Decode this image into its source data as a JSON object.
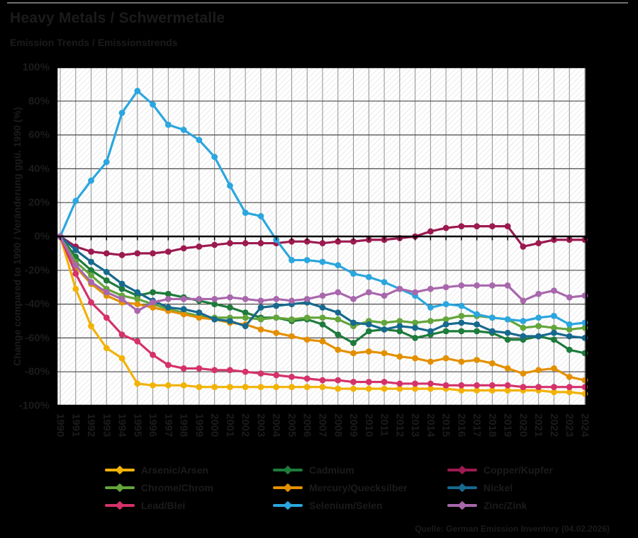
{
  "header": {
    "title": "Heavy Metals / Schwermetalle",
    "subtitle": "Emission Trends / Emissionstrends"
  },
  "footer": {
    "source": "Quelle: German Emission Inventory (04.02.2026)"
  },
  "colors": {
    "background": "#000000",
    "text": "#1b1b1b",
    "plot_background": "#ffffff",
    "hatch": "#dadada",
    "grid_minor": "#8f8f8f",
    "grid_major": "#4a4a4a",
    "axis": "#000000",
    "top_rule": "#6f6f6f"
  },
  "chart_data": {
    "type": "line",
    "title": "Heavy Metals / Schwermetalle",
    "subtitle": "Emission Trends / Emissionstrends",
    "ylabel": "Change compared to 1990 / Veränderung ggü. 1990 (%)",
    "ylim": [
      -100,
      100
    ],
    "ytick_step": 20,
    "ytick_labels": [
      "100%",
      "80%",
      "60%",
      "40%",
      "20%",
      "0%",
      "-20%",
      "-40%",
      "-60%",
      "-80%",
      "-100%"
    ],
    "grid": true,
    "legend_position": "bottom",
    "x": [
      1990,
      1991,
      1992,
      1993,
      1994,
      1995,
      1996,
      1997,
      1998,
      1999,
      2000,
      2001,
      2002,
      2003,
      2004,
      2005,
      2006,
      2007,
      2008,
      2009,
      2010,
      2011,
      2012,
      2013,
      2014,
      2015,
      2016,
      2017,
      2018,
      2019,
      2020,
      2021,
      2022,
      2023,
      2024
    ],
    "series": [
      {
        "name": "Arsenic/Arsen",
        "color": "#F2B206",
        "values": [
          0,
          -31,
          -53,
          -66,
          -72,
          -87,
          -88,
          -88,
          -88,
          -89,
          -89,
          -89,
          -89,
          -89,
          -89,
          -89,
          -89,
          -89,
          -90,
          -90,
          -90,
          -90,
          -90,
          -90,
          -90,
          -90,
          -91,
          -91,
          -91,
          -91,
          -91,
          -91,
          -92,
          -92,
          -93
        ]
      },
      {
        "name": "Cadmium",
        "color": "#1E7B3C",
        "values": [
          0,
          -12,
          -20,
          -26,
          -31,
          -35,
          -33,
          -34,
          -36,
          -38,
          -40,
          -42,
          -45,
          -48,
          -48,
          -50,
          -49,
          -52,
          -58,
          -63,
          -56,
          -55,
          -56,
          -60,
          -58,
          -56,
          -56,
          -56,
          -57,
          -61,
          -61,
          -59,
          -61,
          -67,
          -69
        ]
      },
      {
        "name": "Copper/Kupfer",
        "color": "#9C1A50",
        "values": [
          0,
          -6,
          -9,
          -10,
          -11,
          -10,
          -10,
          -9,
          -7,
          -6,
          -5,
          -4,
          -4,
          -4,
          -4,
          -3,
          -3,
          -4,
          -3,
          -3,
          -2,
          -2,
          -1,
          0,
          3,
          5,
          6,
          6,
          6,
          6,
          -6,
          -4,
          -2,
          -2,
          -2
        ]
      },
      {
        "name": "Chrome/Chrom",
        "color": "#64A53C",
        "values": [
          0,
          -15,
          -23,
          -31,
          -35,
          -37,
          -40,
          -43,
          -45,
          -47,
          -48,
          -48,
          -48,
          -49,
          -48,
          -49,
          -48,
          -48,
          -49,
          -53,
          -50,
          -51,
          -50,
          -51,
          -50,
          -49,
          -47,
          -47,
          -48,
          -49,
          -54,
          -53,
          -54,
          -55,
          -54
        ]
      },
      {
        "name": "Mercury/Quecksilber",
        "color": "#E39000",
        "values": [
          0,
          -18,
          -28,
          -35,
          -39,
          -40,
          -42,
          -44,
          -46,
          -48,
          -49,
          -51,
          -52,
          -55,
          -57,
          -59,
          -61,
          -62,
          -67,
          -69,
          -68,
          -69,
          -71,
          -72,
          -74,
          -72,
          -74,
          -73,
          -75,
          -78,
          -81,
          -79,
          -78,
          -83,
          -85
        ]
      },
      {
        "name": "Nickel",
        "color": "#17698E",
        "values": [
          0,
          -8,
          -15,
          -21,
          -28,
          -33,
          -38,
          -42,
          -43,
          -45,
          -49,
          -50,
          -53,
          -42,
          -41,
          -40,
          -39,
          -42,
          -45,
          -51,
          -52,
          -55,
          -53,
          -54,
          -56,
          -52,
          -51,
          -52,
          -56,
          -57,
          -59,
          -59,
          -57,
          -59,
          -60
        ]
      },
      {
        "name": "Lead/Blei",
        "color": "#D4326A",
        "values": [
          0,
          -22,
          -39,
          -48,
          -58,
          -62,
          -70,
          -76,
          -78,
          -78,
          -79,
          -79,
          -80,
          -81,
          -82,
          -83,
          -84,
          -85,
          -85,
          -86,
          -86,
          -86,
          -87,
          -87,
          -87,
          -88,
          -88,
          -88,
          -88,
          -88,
          -89,
          -89,
          -89,
          -89,
          -89
        ]
      },
      {
        "name": "Selenium/Selen",
        "color": "#2BA6DE",
        "values": [
          0,
          21,
          33,
          44,
          73,
          86,
          78,
          66,
          63,
          57,
          47,
          30,
          14,
          12,
          -2,
          -14,
          -14,
          -15,
          -17,
          -22,
          -24,
          -27,
          -31,
          -35,
          -42,
          -40,
          -41,
          -46,
          -48,
          -49,
          -50,
          -48,
          -47,
          -52,
          -51
        ]
      },
      {
        "name": "Zinc/Zink",
        "color": "#A867AC",
        "values": [
          0,
          -17,
          -27,
          -33,
          -37,
          -44,
          -39,
          -37,
          -37,
          -37,
          -37,
          -36,
          -37,
          -38,
          -37,
          -38,
          -37,
          -35,
          -33,
          -37,
          -33,
          -35,
          -31,
          -33,
          -31,
          -30,
          -29,
          -29,
          -29,
          -29,
          -38,
          -34,
          -32,
          -36,
          -35
        ]
      }
    ]
  }
}
